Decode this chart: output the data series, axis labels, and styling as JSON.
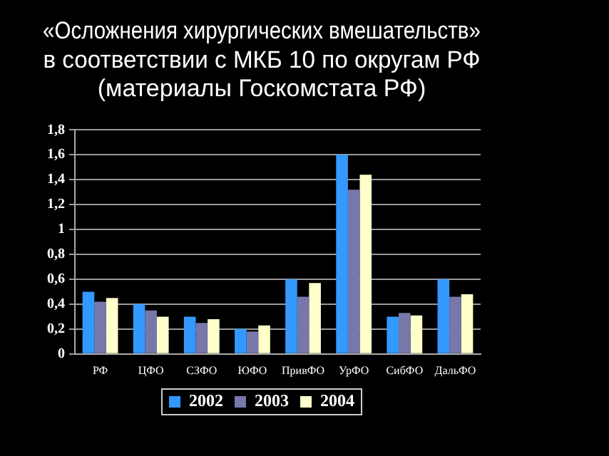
{
  "chart_data": {
    "type": "bar",
    "title": "«Осложнения хирургических вмешательств»\nв соответствии с МКБ 10 по округам РФ\n(материалы Госкомстата РФ)",
    "categories": [
      "РФ",
      "ЦФО",
      "СЗФО",
      "ЮФО",
      "ПривФО",
      "УрФО",
      "СибФО",
      "ДальФО"
    ],
    "series": [
      {
        "name": "2002",
        "color": "#3399ff",
        "values": [
          0.5,
          0.4,
          0.3,
          0.2,
          0.6,
          1.6,
          0.3,
          0.6
        ]
      },
      {
        "name": "2003",
        "color": "#7777aa",
        "values": [
          0.42,
          0.35,
          0.25,
          0.18,
          0.46,
          1.32,
          0.33,
          0.46
        ]
      },
      {
        "name": "2004",
        "color": "#ffffcc",
        "values": [
          0.45,
          0.3,
          0.28,
          0.23,
          0.57,
          1.44,
          0.31,
          0.48
        ]
      }
    ],
    "ylim": [
      0,
      1.8
    ],
    "yticks": [
      0,
      {
        "value": 0.2,
        "label": "0,2"
      },
      {
        "value": 0.4,
        "label": "0,4"
      },
      {
        "value": 0.6,
        "label": "0,6"
      },
      {
        "value": 0.8,
        "label": "0,8"
      },
      1,
      {
        "value": 1.2,
        "label": "1,2"
      },
      {
        "value": 1.4,
        "label": "1,4"
      },
      {
        "value": 1.6,
        "label": "1,6"
      },
      {
        "value": 1.8,
        "label": "1,8"
      }
    ],
    "grid": "y",
    "legend": "bottom"
  }
}
